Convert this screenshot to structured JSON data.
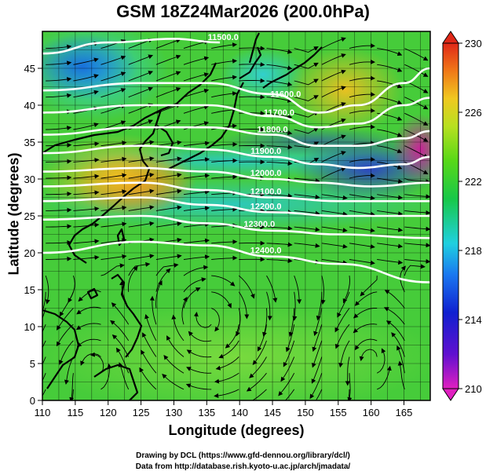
{
  "title": "GSM 18Z24Mar2026 (200.0hPa)",
  "xaxis": {
    "label": "Longitude (degrees)",
    "ticks": [
      "110",
      "115",
      "120",
      "125",
      "130",
      "135",
      "140",
      "145",
      "150",
      "155",
      "160",
      "165"
    ]
  },
  "yaxis": {
    "label": "Latitude  (degrees)",
    "ticks": [
      "0",
      "5",
      "10",
      "15",
      "20",
      "25",
      "30",
      "35",
      "40",
      "45"
    ]
  },
  "colorbar": {
    "ticks": [
      "210",
      "214",
      "218",
      "222",
      "226",
      "230"
    ]
  },
  "credits": {
    "line1": "Drawing by DCL (https://www.gfd-dennou.org/library/dcl/)",
    "line2": "Data from http://database.rish.kyoto-u.ac.jp/arch/jmadata/"
  },
  "chart_data": {
    "type": "map",
    "title": "GSM 18Z24Mar2026 (200.0hPa)",
    "xlabel": "Longitude (degrees)",
    "ylabel": "Latitude  (degrees)",
    "xlim": [
      110,
      169
    ],
    "ylim": [
      0,
      50
    ],
    "fill_variable": "temperature (K)",
    "colorbar_range": [
      210,
      230
    ],
    "overlay": "wind streamlines",
    "contour_variable": "geopotential height (m)",
    "contours": [
      {
        "label": "11500.0",
        "points": [
          [
            110,
            47
          ],
          [
            120,
            48.5
          ],
          [
            130,
            49
          ],
          [
            137,
            48.5
          ]
        ]
      },
      {
        "label": "11600.0",
        "points": [
          [
            110,
            42
          ],
          [
            125,
            43
          ],
          [
            135,
            43
          ],
          [
            145,
            41.5
          ],
          [
            152,
            39
          ],
          [
            158,
            40
          ],
          [
            165,
            43
          ],
          [
            169,
            45
          ]
        ]
      },
      {
        "label": "11700.0",
        "points": [
          [
            110,
            39
          ],
          [
            125,
            40
          ],
          [
            135,
            40
          ],
          [
            145,
            38.5
          ],
          [
            152,
            37
          ],
          [
            158,
            37.5
          ],
          [
            165,
            40
          ],
          [
            169,
            41
          ]
        ]
      },
      {
        "label": "11800.0",
        "points": [
          [
            110,
            36
          ],
          [
            125,
            37
          ],
          [
            135,
            37
          ],
          [
            145,
            36
          ],
          [
            152,
            34.5
          ],
          [
            158,
            34.5
          ],
          [
            165,
            35.5
          ],
          [
            169,
            36.5
          ]
        ]
      },
      {
        "label": "11900.0",
        "points": [
          [
            110,
            33.5
          ],
          [
            125,
            34.5
          ],
          [
            135,
            34
          ],
          [
            145,
            33
          ],
          [
            152,
            32
          ],
          [
            158,
            31.5
          ],
          [
            165,
            32
          ],
          [
            169,
            33
          ]
        ]
      },
      {
        "label": "12000.0",
        "points": [
          [
            110,
            31
          ],
          [
            125,
            31.5
          ],
          [
            135,
            31
          ],
          [
            145,
            30
          ],
          [
            152,
            29.5
          ],
          [
            160,
            29
          ],
          [
            169,
            29.5
          ]
        ]
      },
      {
        "label": "12100.0",
        "points": [
          [
            110,
            29
          ],
          [
            125,
            29.5
          ],
          [
            135,
            28.5
          ],
          [
            145,
            27.5
          ],
          [
            155,
            27
          ],
          [
            169,
            27
          ]
        ]
      },
      {
        "label": "12200.0",
        "points": [
          [
            110,
            27
          ],
          [
            125,
            27.5
          ],
          [
            135,
            26.5
          ],
          [
            145,
            25.5
          ],
          [
            155,
            25
          ],
          [
            169,
            25
          ]
        ]
      },
      {
        "label": "12300.0",
        "points": [
          [
            110,
            24.5
          ],
          [
            125,
            25
          ],
          [
            135,
            24
          ],
          [
            145,
            23
          ],
          [
            155,
            22.5
          ],
          [
            169,
            22
          ]
        ]
      },
      {
        "label": "12400.0",
        "points": [
          [
            110,
            20
          ],
          [
            125,
            21.5
          ],
          [
            135,
            21
          ],
          [
            145,
            19.5
          ],
          [
            155,
            18.5
          ],
          [
            169,
            16
          ]
        ]
      }
    ]
  }
}
